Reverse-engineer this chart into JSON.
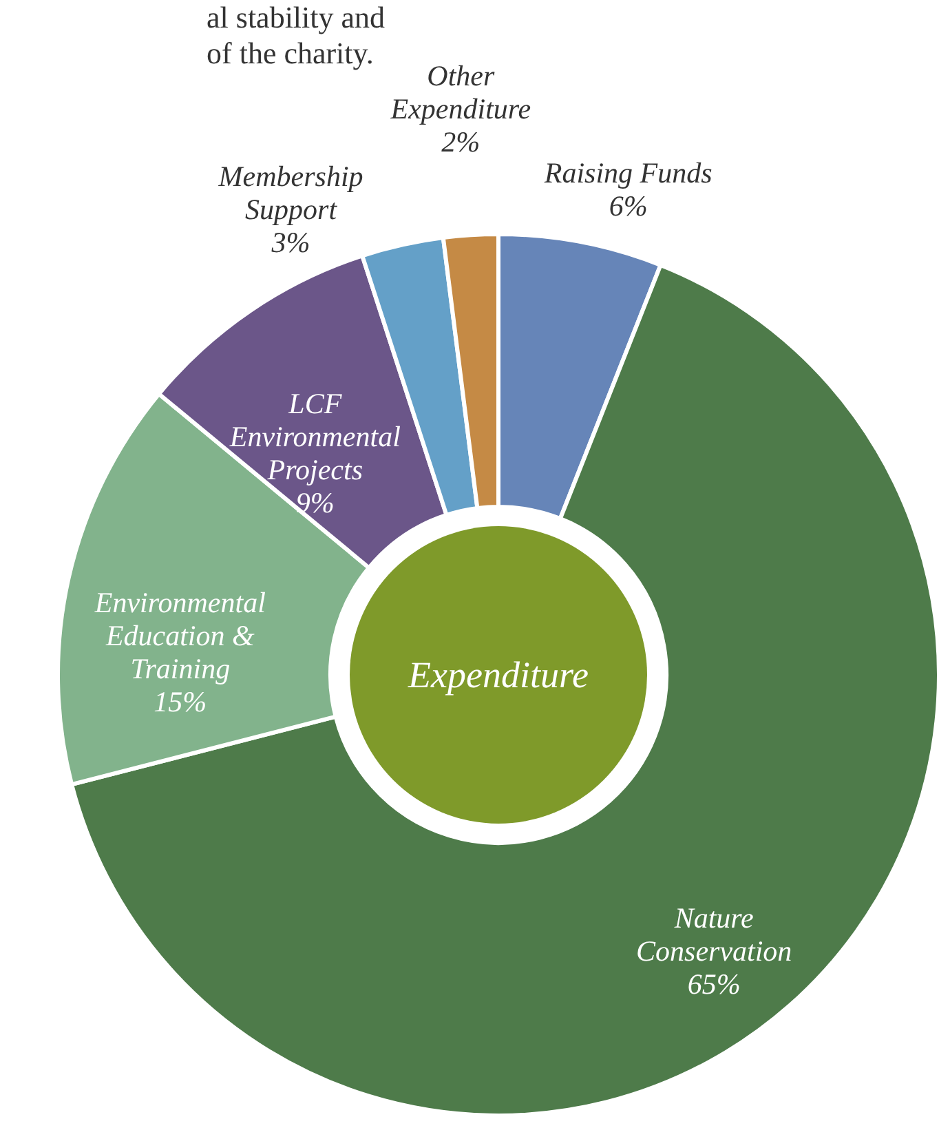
{
  "chart_data": {
    "type": "donut",
    "title": "Expenditure",
    "categories": [
      "Raising Funds",
      "Nature Conservation",
      "Environmental Education & Training",
      "LCF Environmental Projects",
      "Membership Support",
      "Other Expenditure"
    ],
    "values": [
      6,
      65,
      15,
      9,
      3,
      2
    ],
    "value_labels": [
      "6%",
      "65%",
      "15%",
      "9%",
      "3%",
      "2%"
    ],
    "colors": [
      "#6685b8",
      "#4e7b4a",
      "#82b38c",
      "#6b5689",
      "#64a0c8",
      "#c58a45"
    ],
    "annotations": [
      "al stability and",
      "of the charity."
    ]
  }
}
